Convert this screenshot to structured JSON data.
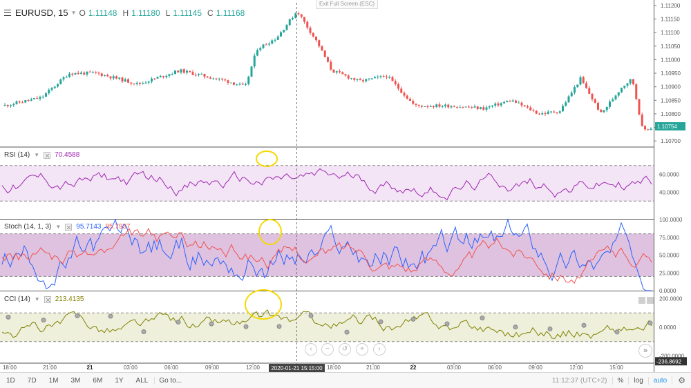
{
  "header": {
    "symbol": "EURUSD, 15",
    "ohlc": [
      {
        "label": "O",
        "value": "1.11148"
      },
      {
        "label": "H",
        "value": "1.11180"
      },
      {
        "label": "L",
        "value": "1.11145"
      },
      {
        "label": "C",
        "value": "1.11168"
      }
    ],
    "exit_fullscreen": "Exit Full Screen (ESC)"
  },
  "price_axis": {
    "labels": [
      "1.11200",
      "1.11150",
      "1.11100",
      "1.11050",
      "1.11000",
      "1.10950",
      "1.10900",
      "1.10850",
      "1.10800",
      "1.10750",
      "1.10700"
    ],
    "current": "1.10754",
    "ylim": [
      1.1068,
      1.1121
    ]
  },
  "rsi": {
    "name": "RSI (14)",
    "value": "70.4588",
    "axis": [
      "60.0000",
      "40.0000"
    ],
    "upper": 70,
    "lower": 30
  },
  "stoch": {
    "name": "Stoch (14, 1, 3)",
    "k_value": "95.7143",
    "d_value": "95.7937",
    "axis": [
      "100.0000",
      "75.0000",
      "50.0000",
      "25.0000",
      "0.0000"
    ],
    "upper": 80,
    "lower": 20
  },
  "cci": {
    "name": "CCI (14)",
    "value": "213.4135",
    "axis": [
      "200.0000",
      "0.0000",
      "-200.0000"
    ],
    "current": "-236.8692",
    "upper": 100,
    "lower": -100
  },
  "time_axis": {
    "labels": [
      "18:00",
      "21:00",
      "21",
      "03:00",
      "06:00",
      "09:00",
      "12:00",
      "18:00",
      "21:00",
      "22",
      "03:00",
      "06:00",
      "09:00",
      "12:00",
      "15:00"
    ],
    "crosshair": "2020-01-21 15:15:00"
  },
  "bottom_bar": {
    "ranges": [
      "1D",
      "7D",
      "1M",
      "3M",
      "6M",
      "1Y",
      "ALL"
    ],
    "goto": "Go to...",
    "clock": "11:12:37 (UTC+2)",
    "percent": "%",
    "log": "log",
    "auto": "auto"
  },
  "colors": {
    "up": "#26a69a",
    "down": "#ef5350",
    "rsi": "#9c27b0",
    "stoch_k": "#2962ff",
    "stoch_d": "#ef5350",
    "cci": "#808000",
    "annotation": "#f5d800"
  },
  "icons": [
    "menu-icon",
    "close-icon",
    "chevron-left-icon",
    "zoom-out-icon",
    "reset-icon",
    "zoom-in-icon",
    "chevron-right-icon",
    "double-chevron-icon",
    "gear-icon"
  ]
}
